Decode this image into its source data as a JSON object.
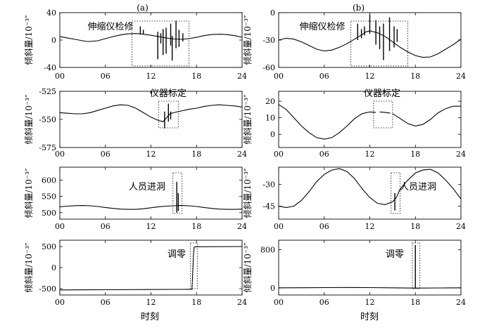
{
  "figure": {
    "x_axis_label": "时刻",
    "y_axis_label": "倾斜量/10⁻³″"
  },
  "chart_data": [
    {
      "type": "line",
      "panel_label": "(a)",
      "xlim": [
        0,
        24
      ],
      "ylim": [
        -40,
        40
      ],
      "x_ticks": [
        "00",
        "06",
        "12",
        "18",
        "24"
      ],
      "y_ticks": [
        "40",
        "0",
        "-40"
      ],
      "annotation": "伸缩仪检修",
      "annotation_xrange": [
        9.5,
        17
      ],
      "series": [
        {
          "points": [
            [
              0,
              5
            ],
            [
              1,
              3
            ],
            [
              2,
              1
            ],
            [
              3,
              -1
            ],
            [
              3.5,
              -2
            ],
            [
              4,
              -2
            ],
            [
              5,
              -1
            ],
            [
              6,
              2
            ],
            [
              7,
              5
            ],
            [
              8,
              7.5
            ],
            [
              9,
              9
            ],
            [
              10,
              9.5
            ],
            [
              11,
              8.5
            ],
            [
              12,
              7
            ],
            [
              13,
              5
            ],
            [
              14,
              3
            ],
            [
              15,
              1.5
            ],
            [
              16,
              1
            ],
            [
              17,
              2
            ],
            [
              18,
              4
            ],
            [
              19,
              6.5
            ],
            [
              20,
              8
            ],
            [
              21,
              8.5
            ],
            [
              22,
              8
            ],
            [
              23,
              6.5
            ],
            [
              24,
              4
            ]
          ]
        }
      ],
      "spikes": [
        {
          "x": 10.6,
          "y": [
            8,
            20
          ]
        },
        {
          "x": 11.0,
          "y": [
            9,
            15
          ]
        },
        {
          "x": 12.9,
          "y": [
            -28,
            12
          ]
        },
        {
          "x": 13.3,
          "y": [
            -5,
            10
          ]
        },
        {
          "x": 13.6,
          "y": [
            -22,
            16
          ]
        },
        {
          "x": 14.0,
          "y": [
            -20,
            18
          ]
        },
        {
          "x": 14.6,
          "y": [
            -8,
            24
          ]
        },
        {
          "x": 14.8,
          "y": [
            -30,
            6
          ]
        },
        {
          "x": 15.3,
          "y": [
            -12,
            28
          ]
        },
        {
          "x": 15.7,
          "y": [
            -10,
            15
          ]
        },
        {
          "x": 16.2,
          "y": [
            -2,
            10
          ]
        }
      ]
    },
    {
      "type": "line",
      "panel_label": "(b)",
      "xlim": [
        0,
        24
      ],
      "ylim": [
        -60,
        0
      ],
      "x_ticks": [
        "00",
        "06",
        "12",
        "18",
        "24"
      ],
      "y_ticks": [
        "0",
        "-30",
        "-60"
      ],
      "annotation": "伸缩仪检修",
      "annotation_xrange": [
        9.5,
        17
      ],
      "series": [
        {
          "points": [
            [
              0,
              -30
            ],
            [
              1,
              -28
            ],
            [
              2,
              -29
            ],
            [
              3,
              -32
            ],
            [
              4,
              -36
            ],
            [
              5,
              -40
            ],
            [
              6,
              -42
            ],
            [
              7,
              -41
            ],
            [
              8,
              -38
            ],
            [
              9,
              -34
            ],
            [
              10,
              -29
            ],
            [
              11,
              -24
            ],
            [
              11.5,
              -21
            ],
            [
              12,
              -20
            ],
            [
              13,
              -22
            ],
            [
              14,
              -26
            ],
            [
              15,
              -32
            ],
            [
              16,
              -38
            ],
            [
              17,
              -43
            ],
            [
              18,
              -47
            ],
            [
              19,
              -49
            ],
            [
              20,
              -48.5
            ],
            [
              21,
              -45
            ],
            [
              22,
              -40
            ],
            [
              23,
              -35
            ],
            [
              24,
              -29
            ]
          ]
        }
      ],
      "spikes": [
        {
          "x": 10.4,
          "y": [
            -30,
            -12
          ]
        },
        {
          "x": 10.9,
          "y": [
            -28,
            -18
          ]
        },
        {
          "x": 11.3,
          "y": [
            -25,
            -15
          ]
        },
        {
          "x": 12.0,
          "y": [
            -23,
            -2
          ]
        },
        {
          "x": 12.8,
          "y": [
            -35,
            -8
          ]
        },
        {
          "x": 13.3,
          "y": [
            -40,
            -15
          ]
        },
        {
          "x": 13.8,
          "y": [
            -52,
            -12
          ]
        },
        {
          "x": 14.6,
          "y": [
            -42,
            -5
          ]
        },
        {
          "x": 15.2,
          "y": [
            -38,
            -15
          ]
        },
        {
          "x": 15.6,
          "y": [
            -32,
            -18
          ]
        }
      ]
    },
    {
      "type": "line",
      "panel_label": "",
      "xlim": [
        0,
        24
      ],
      "ylim": [
        -575,
        -525
      ],
      "x_ticks": [
        "00",
        "06",
        "12",
        "18",
        "24"
      ],
      "y_ticks": [
        "-525",
        "-550",
        "-575"
      ],
      "annotation": "仪器标定",
      "annotation_xrange": [
        13,
        15.6
      ],
      "series": [
        {
          "points": [
            [
              0,
              -544
            ],
            [
              1,
              -544.5
            ],
            [
              2,
              -545
            ],
            [
              3,
              -545
            ],
            [
              4,
              -544
            ],
            [
              5,
              -542
            ],
            [
              6,
              -540
            ],
            [
              7,
              -538
            ],
            [
              8,
              -537
            ],
            [
              9,
              -537.5
            ],
            [
              10,
              -540
            ],
            [
              11,
              -544
            ],
            [
              12,
              -548
            ],
            [
              13,
              -551
            ],
            [
              13.6,
              -552
            ],
            [
              14,
              -549
            ],
            [
              14.5,
              -545
            ],
            [
              15,
              -544
            ],
            [
              16,
              -542.5
            ],
            [
              17,
              -541
            ],
            [
              18,
              -540
            ],
            [
              19,
              -538.5
            ],
            [
              20,
              -537.5
            ],
            [
              21,
              -537
            ],
            [
              22,
              -537.5
            ],
            [
              23,
              -538
            ],
            [
              24,
              -539
            ]
          ]
        }
      ],
      "spikes": [
        {
          "x": 13.8,
          "y": [
            -558,
            -543
          ]
        },
        {
          "x": 14.3,
          "y": [
            -552,
            -536
          ]
        },
        {
          "x": 14.6,
          "y": [
            -550,
            -543
          ]
        }
      ]
    },
    {
      "type": "line",
      "panel_label": "",
      "xlim": [
        0,
        24
      ],
      "ylim": [
        -8,
        26
      ],
      "x_ticks": [
        "00",
        "06",
        "12",
        "18",
        "24"
      ],
      "y_ticks": [
        "20",
        "10",
        "0"
      ],
      "annotation": "仪器标定",
      "annotation_xrange": [
        12.5,
        15
      ],
      "series": [
        {
          "points": [
            [
              0,
              18
            ],
            [
              1,
              15
            ],
            [
              2,
              10
            ],
            [
              3,
              5
            ],
            [
              4,
              1
            ],
            [
              5,
              -2
            ],
            [
              6,
              -3
            ],
            [
              7,
              -2
            ],
            [
              8,
              1
            ],
            [
              9,
              5
            ],
            [
              10,
              9.5
            ],
            [
              11,
              12.5
            ],
            [
              12,
              13.5
            ],
            [
              12.8,
              13.2
            ]
          ]
        },
        {
          "points": [
            [
              13.3,
              13.5
            ],
            [
              14,
              13.2
            ],
            [
              14.7,
              12.8
            ]
          ]
        },
        {
          "points": [
            [
              15,
              12.5
            ],
            [
              16,
              9.5
            ],
            [
              17,
              6.5
            ],
            [
              18,
              5
            ],
            [
              19,
              6
            ],
            [
              20,
              9
            ],
            [
              21,
              13
            ],
            [
              22,
              15.5
            ],
            [
              23,
              17
            ],
            [
              24,
              17
            ]
          ]
        }
      ],
      "spikes": []
    },
    {
      "type": "line",
      "panel_label": "",
      "xlim": [
        0,
        24
      ],
      "ylim": [
        480,
        640
      ],
      "x_ticks": [
        "00",
        "06",
        "12",
        "18",
        "24"
      ],
      "y_ticks": [
        "600",
        "550",
        "500"
      ],
      "annotation": "人员进洞",
      "annotation_xrange": [
        14.9,
        16.1
      ],
      "series": [
        {
          "points": [
            [
              0,
              518
            ],
            [
              1,
              520
            ],
            [
              2,
              521.5
            ],
            [
              3,
              522
            ],
            [
              4,
              521
            ],
            [
              5,
              519
            ],
            [
              6,
              516
            ],
            [
              7,
              513
            ],
            [
              8,
              511
            ],
            [
              9,
              510
            ],
            [
              10,
              510
            ],
            [
              11,
              512
            ],
            [
              12,
              515
            ],
            [
              13,
              518
            ],
            [
              14,
              520
            ],
            [
              15,
              521
            ],
            [
              16,
              522
            ],
            [
              17,
              521
            ],
            [
              18,
              519
            ],
            [
              19,
              516
            ],
            [
              20,
              513
            ],
            [
              21,
              511
            ],
            [
              22,
              510
            ],
            [
              23,
              510
            ],
            [
              24,
              511
            ]
          ]
        }
      ],
      "spikes": [
        {
          "x": 15.4,
          "y": [
            500,
            595
          ]
        },
        {
          "x": 15.6,
          "y": [
            505,
            560
          ]
        }
      ]
    },
    {
      "type": "line",
      "panel_label": "",
      "xlim": [
        0,
        24
      ],
      "ylim": [
        -54,
        -18
      ],
      "x_ticks": [
        "00",
        "06",
        "12",
        "18",
        "24"
      ],
      "y_ticks": [
        "-30",
        "-45"
      ],
      "annotation": "人员进洞",
      "annotation_xrange": [
        14.8,
        16
      ],
      "series": [
        {
          "points": [
            [
              0,
              -45
            ],
            [
              1,
              -46
            ],
            [
              2,
              -45
            ],
            [
              3,
              -41
            ],
            [
              4,
              -35
            ],
            [
              5,
              -28
            ],
            [
              6,
              -23
            ],
            [
              7,
              -20
            ],
            [
              8,
              -19
            ],
            [
              9,
              -21
            ],
            [
              10,
              -26
            ],
            [
              11,
              -33
            ],
            [
              12,
              -39
            ],
            [
              13,
              -43
            ],
            [
              14,
              -44
            ],
            [
              15,
              -42
            ],
            [
              15.5,
              -39
            ],
            [
              16,
              -33
            ],
            [
              17,
              -27
            ],
            [
              18,
              -22
            ],
            [
              19,
              -20
            ],
            [
              20,
              -19.5
            ],
            [
              21,
              -22
            ],
            [
              22,
              -27
            ],
            [
              23,
              -33
            ],
            [
              24,
              -40
            ]
          ]
        }
      ],
      "spikes": [
        {
          "x": 15.3,
          "y": [
            -48,
            -36
          ]
        }
      ]
    },
    {
      "type": "line",
      "panel_label": "",
      "xlim": [
        0,
        24
      ],
      "ylim": [
        -650,
        650
      ],
      "x_ticks": [
        "00",
        "06",
        "12",
        "18",
        "24"
      ],
      "y_ticks": [
        "500",
        "0",
        "-500"
      ],
      "annotation": "调零",
      "annotation_xrange": [
        17.2,
        18.1
      ],
      "series": [
        {
          "points": [
            [
              0,
              -530
            ],
            [
              6,
              -525
            ],
            [
              12,
              -520
            ],
            [
              17.3,
              -515
            ],
            [
              17.4,
              -515
            ],
            [
              17.6,
              300
            ],
            [
              17.7,
              490
            ],
            [
              18,
              495
            ],
            [
              24,
              500
            ]
          ]
        }
      ],
      "spikes": []
    },
    {
      "type": "line",
      "panel_label": "",
      "xlim": [
        0,
        24
      ],
      "ylim": [
        -150,
        1000
      ],
      "x_ticks": [
        "00",
        "06",
        "12",
        "18",
        "24"
      ],
      "y_ticks": [
        "800",
        "0"
      ],
      "annotation": "调零",
      "annotation_xrange": [
        17.6,
        18.6
      ],
      "series": [
        {
          "points": [
            [
              0,
              0
            ],
            [
              3,
              2
            ],
            [
              6,
              5
            ],
            [
              9,
              8
            ],
            [
              12,
              5
            ],
            [
              15,
              0
            ],
            [
              17.9,
              -5
            ],
            [
              18.1,
              -5
            ],
            [
              21,
              -3
            ],
            [
              24,
              0
            ]
          ]
        }
      ],
      "spikes": [
        {
          "x": 18.0,
          "y": [
            -10,
            900
          ]
        }
      ]
    }
  ]
}
